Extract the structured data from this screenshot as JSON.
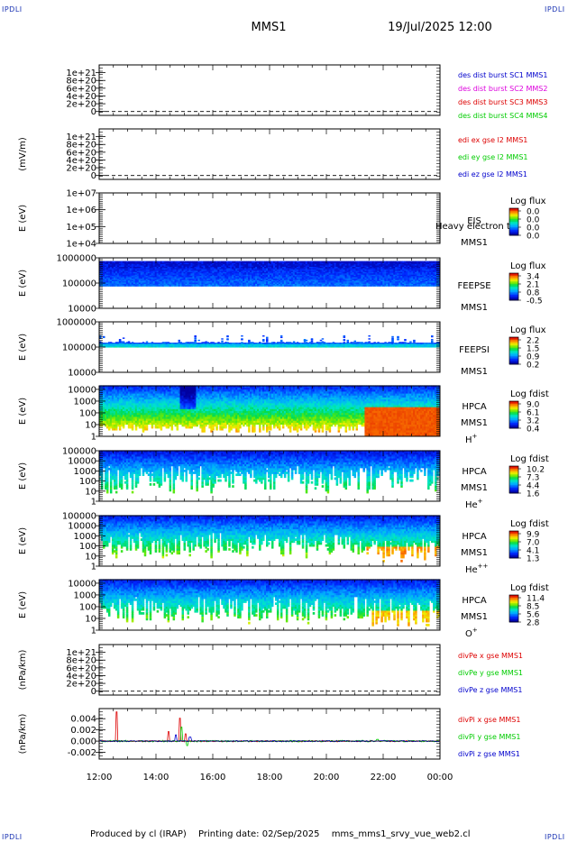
{
  "corner_marks": {
    "top_left": "IPDLI",
    "top_right": "IPDLI",
    "bottom_left": "IPDLI",
    "bottom_right": "IPDLI"
  },
  "header": {
    "title": "MMS1",
    "datetime": "19/Jul/2025 12:00"
  },
  "footer": {
    "produced_by": "Produced by cl (IRAP)",
    "printing_date": "Printing date: 02/Sep/2025",
    "script_name": "mms_mms1_srvy_vue_web2.cl"
  },
  "colors": {
    "red": "#dd0000",
    "magenta": "#dd00dd",
    "green": "#00cc00",
    "blue": "#0000cc",
    "frame": "#000000"
  },
  "chart_data": [
    {
      "type": "line",
      "id": "des_dist",
      "ylabel": "",
      "ylim": [
        -1e+20,
        1.2e+21
      ],
      "yticks": [
        "1e+21",
        "8e+20",
        "6e+20",
        "4e+20",
        "2e+20",
        "0"
      ],
      "ytick_values": [
        1e+21,
        8e+20,
        6e+20,
        4e+20,
        2e+20,
        0
      ],
      "zero_line": true,
      "legend": [
        {
          "label": "des dist burst SC1 MMS1",
          "color": "#0000cc"
        },
        {
          "label": "des dist burst SC2 MMS2",
          "color": "#dd00dd"
        },
        {
          "label": "des dist burst SC3 MMS3",
          "color": "#dd0000"
        },
        {
          "label": "des dist burst SC4 MMS4",
          "color": "#00cc00"
        }
      ],
      "series": []
    },
    {
      "type": "line",
      "id": "edi_e",
      "ylabel": "(mV/m)",
      "ylim": [
        -1e+20,
        1.2e+21
      ],
      "yticks": [
        "1e+21",
        "8e+20",
        "6e+20",
        "4e+20",
        "2e+20",
        "0"
      ],
      "ytick_values": [
        1e+21,
        8e+20,
        6e+20,
        4e+20,
        2e+20,
        0
      ],
      "zero_line": true,
      "legend": [
        {
          "label": "edi ex gse l2 MMS1",
          "color": "#dd0000"
        },
        {
          "label": "edi ey gse l2 MMS1",
          "color": "#00cc00"
        },
        {
          "label": "edi ez gse l2 MMS1",
          "color": "#0000cc"
        }
      ],
      "series": []
    },
    {
      "type": "heatmap",
      "id": "eis",
      "ylabel": "E (eV)",
      "ylim": [
        10000.0,
        10000000.0
      ],
      "scale": "log",
      "yticks": [
        "1e+07",
        "1e+06",
        "1e+05",
        "1e+04"
      ],
      "ytick_values": [
        10000000.0,
        1000000.0,
        100000.0,
        10000.0
      ],
      "labels": [
        "EIS",
        "MMS1"
      ],
      "overlay_text": "Heavy electron to",
      "colorbar": {
        "title": "Log flux",
        "ticks": [
          "0.0",
          "0.0",
          "0.0",
          "0.0"
        ]
      },
      "empty": true
    },
    {
      "type": "heatmap",
      "id": "feepse",
      "ylabel": "E (eV)",
      "ylim": [
        10000,
        1000000
      ],
      "scale": "log",
      "yticks": [
        "1000000",
        "100000",
        "10000"
      ],
      "ytick_values": [
        1000000,
        100000,
        10000
      ],
      "labels": [
        "FEEPSE",
        "MMS1"
      ],
      "colorbar": {
        "title": "Log flux",
        "ticks": [
          "3.4",
          "2.1",
          "0.8",
          "-0.5"
        ]
      },
      "data_range_log": [
        4.5,
        5.85
      ],
      "style": "feeps_e"
    },
    {
      "type": "heatmap",
      "id": "feepsi",
      "ylabel": "E (eV)",
      "ylim": [
        10000,
        1000000
      ],
      "scale": "log",
      "yticks": [
        "1000000",
        "100000",
        "10000"
      ],
      "ytick_values": [
        1000000,
        100000,
        10000
      ],
      "labels": [
        "FEEPSI",
        "MMS1"
      ],
      "colorbar": {
        "title": "Log flux",
        "ticks": [
          "2.2",
          "1.5",
          "0.9",
          "0.2"
        ]
      },
      "data_range_log": [
        4.75,
        5.5
      ],
      "style": "feeps_i"
    },
    {
      "type": "heatmap",
      "id": "hpca_h",
      "ylabel": "E (eV)",
      "ylim": [
        1,
        20000
      ],
      "scale": "log",
      "yticks": [
        "10000",
        "1000",
        "100",
        "10",
        "1"
      ],
      "ytick_values": [
        10000,
        1000,
        100,
        10,
        1
      ],
      "labels": [
        "HPCA",
        "MMS1"
      ],
      "species": "H",
      "species_sup": "+",
      "colorbar": {
        "title": "Log fdist",
        "ticks": [
          "9.0",
          "6.1",
          "3.2",
          "0.4"
        ]
      },
      "style": "hpca_h"
    },
    {
      "type": "heatmap",
      "id": "hpca_he1",
      "ylabel": "E (eV)",
      "ylim": [
        1,
        100000
      ],
      "scale": "log",
      "yticks": [
        "100000",
        "10000",
        "1000",
        "100",
        "10",
        "1"
      ],
      "ytick_values": [
        100000,
        10000,
        1000,
        100,
        10,
        1
      ],
      "labels": [
        "HPCA",
        "MMS1"
      ],
      "species": "He",
      "species_sup": "+",
      "colorbar": {
        "title": "Log fdist",
        "ticks": [
          "10.2",
          "7.3",
          "4.4",
          "1.6"
        ]
      },
      "style": "hpca_he1"
    },
    {
      "type": "heatmap",
      "id": "hpca_he2",
      "ylabel": "E (eV)",
      "ylim": [
        1,
        100000
      ],
      "scale": "log",
      "yticks": [
        "100000",
        "10000",
        "1000",
        "100",
        "10",
        "1"
      ],
      "ytick_values": [
        100000,
        10000,
        1000,
        100,
        10,
        1
      ],
      "labels": [
        "HPCA",
        "MMS1"
      ],
      "species": "He",
      "species_sup": "++",
      "colorbar": {
        "title": "Log fdist",
        "ticks": [
          "9.9",
          "7.0",
          "4.1",
          "1.3"
        ]
      },
      "style": "hpca_he2"
    },
    {
      "type": "heatmap",
      "id": "hpca_o",
      "ylabel": "E (eV)",
      "ylim": [
        1,
        20000
      ],
      "scale": "log",
      "yticks": [
        "10000",
        "1000",
        "100",
        "10",
        "1"
      ],
      "ytick_values": [
        10000,
        1000,
        100,
        10,
        1
      ],
      "labels": [
        "HPCA",
        "MMS1"
      ],
      "species": "O",
      "species_sup": "+",
      "colorbar": {
        "title": "Log fdist",
        "ticks": [
          "11.4",
          "8.5",
          "5.6",
          "2.8"
        ]
      },
      "style": "hpca_o"
    },
    {
      "type": "line",
      "id": "divpe",
      "ylabel": "(nPa/km)",
      "ylim": [
        -1e+20,
        1.2e+21
      ],
      "yticks": [
        "1e+21",
        "8e+20",
        "6e+20",
        "4e+20",
        "2e+20",
        "0"
      ],
      "ytick_values": [
        1e+21,
        8e+20,
        6e+20,
        4e+20,
        2e+20,
        0
      ],
      "zero_line": true,
      "legend": [
        {
          "label": "divPe x gse MMS1",
          "color": "#dd0000"
        },
        {
          "label": "divPe y gse MMS1",
          "color": "#00cc00"
        },
        {
          "label": "divPe z gse MMS1",
          "color": "#0000cc"
        }
      ],
      "series": []
    },
    {
      "type": "line",
      "id": "divpi",
      "ylabel": "(nPa/km)",
      "ylim": [
        -0.0032,
        0.0058
      ],
      "yticks": [
        "0.004",
        "0.002",
        "0.000",
        "-0.002"
      ],
      "ytick_values": [
        0.004,
        0.002,
        0.0,
        -0.002
      ],
      "zero_line": false,
      "legend": [
        {
          "label": "divPi x gse MMS1",
          "color": "#dd0000"
        },
        {
          "label": "divPi y gse MMS1",
          "color": "#00cc00"
        },
        {
          "label": "divPi z gse MMS1",
          "color": "#0000cc"
        }
      ],
      "series": [
        {
          "name": "divPi x gse MMS1",
          "color": "#dd0000",
          "noise": 0.00012,
          "spikes": [
            [
              12.62,
              0.0052
            ],
            [
              14.45,
              0.0017
            ],
            [
              14.85,
              0.0041
            ],
            [
              15.05,
              0.0013
            ]
          ]
        },
        {
          "name": "divPi y gse MMS1",
          "color": "#00cc00",
          "noise": 0.00015,
          "spikes": [
            [
              14.9,
              0.0025
            ],
            [
              15.1,
              -0.0008
            ],
            [
              21.8,
              0.0003
            ]
          ]
        },
        {
          "name": "divPi z gse MMS1",
          "color": "#0000cc",
          "noise": 0.0001,
          "spikes": [
            [
              14.7,
              0.0011
            ],
            [
              15.2,
              0.0007
            ]
          ]
        }
      ]
    }
  ],
  "time_axis": {
    "start_hour": 12,
    "end_hour": 24,
    "tick_labels": [
      "12:00",
      "14:00",
      "16:00",
      "18:00",
      "20:00",
      "22:00",
      "00:00"
    ]
  }
}
